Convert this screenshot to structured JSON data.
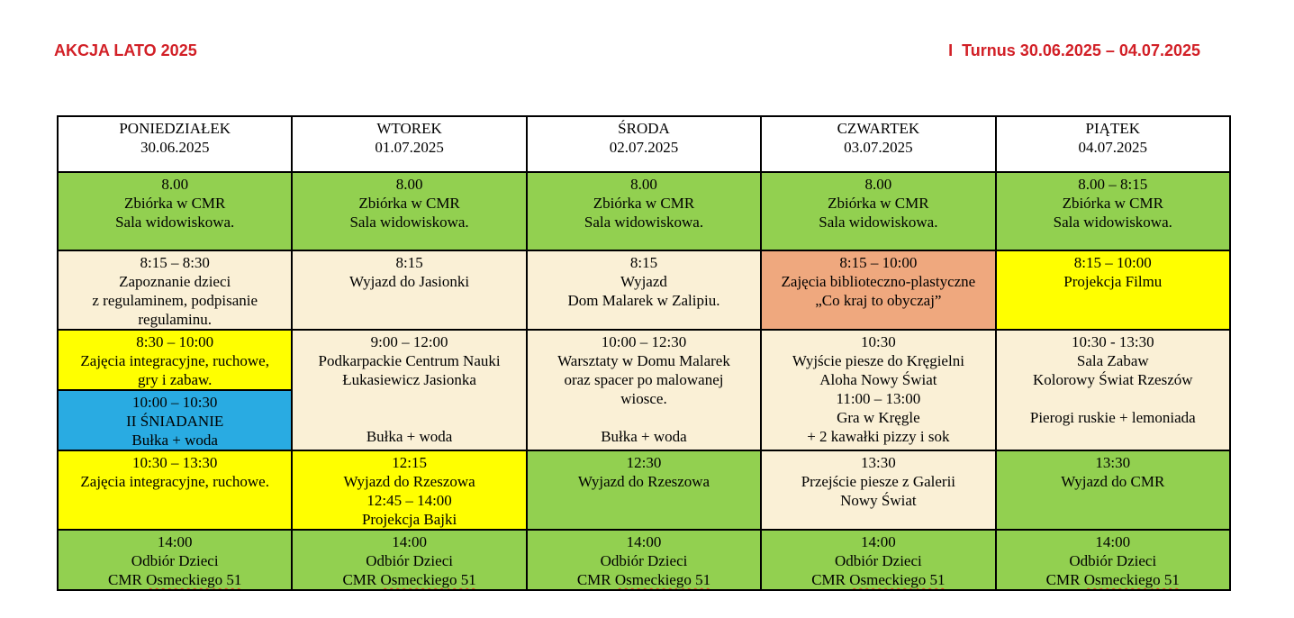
{
  "header": {
    "title_left": "AKCJA LATO 2025",
    "title_right": "I  Turnus 30.06.2025 – 04.07.2025"
  },
  "colors": {
    "title_red": "#D22027",
    "green": "#92D050",
    "yellow": "#FFFF00",
    "blue": "#29ABE2",
    "cream": "#FAF0D6",
    "orange": "#EFA87E",
    "spell_red": "#E8402A"
  },
  "table": {
    "days": [
      {
        "name": "PONIEDZIAŁEK",
        "date": "30.06.2025"
      },
      {
        "name": "WTOREK",
        "date": "01.07.2025"
      },
      {
        "name": "ŚRODA",
        "date": "02.07.2025"
      },
      {
        "name": "CZWARTEK",
        "date": "03.07.2025"
      },
      {
        "name": "PIĄTEK",
        "date": "04.07.2025"
      }
    ],
    "assembly": [
      {
        "lines": [
          "8.00",
          "Zbiórka w CMR",
          "Sala widowiskowa."
        ]
      },
      {
        "lines": [
          "8.00",
          "Zbiórka w CMR",
          "Sala widowiskowa."
        ]
      },
      {
        "lines": [
          "8.00",
          "Zbiórka w CMR",
          "Sala widowiskowa."
        ]
      },
      {
        "lines": [
          "8.00",
          "Zbiórka w CMR",
          "Sala widowiskowa."
        ]
      },
      {
        "lines": [
          "8.00 – 8:15",
          "Zbiórka w CMR",
          "Sala widowiskowa."
        ]
      }
    ],
    "morning": [
      {
        "lines": [
          "8:15 – 8:30",
          "Zapoznanie dzieci",
          "z regulaminem, podpisanie",
          "regulaminu."
        ]
      },
      {
        "lines": [
          "8:15",
          "Wyjazd do Jasionki"
        ]
      },
      {
        "lines": [
          "8:15",
          "Wyjazd",
          "Dom Malarek w Zalipiu."
        ]
      },
      {
        "lines": [
          "8:15 – 10:00",
          "Zajęcia biblioteczno-plastyczne",
          "„Co kraj to obyczaj”"
        ]
      },
      {
        "lines": [
          "8:15 – 10:00",
          "Projekcja Filmu"
        ]
      }
    ],
    "midday": {
      "mon_top": {
        "lines": [
          "8:30 – 10:00",
          "Zajęcia integracyjne, ruchowe,",
          "gry i zabaw."
        ]
      },
      "mon_snack": {
        "lines": [
          "10:00 – 10:30",
          "II ŚNIADANIE",
          "Bułka + woda"
        ]
      },
      "tue": {
        "lines": [
          "9:00 – 12:00",
          "Podkarpackie Centrum Nauki",
          "Łukasiewicz Jasionka",
          "",
          "",
          "Bułka + woda"
        ]
      },
      "wed": {
        "lines": [
          "10:00 – 12:30",
          "Warsztaty w Domu Malarek",
          "oraz spacer po malowanej",
          "wiosce.",
          "",
          "Bułka + woda"
        ]
      },
      "thu": {
        "lines": [
          "10:30",
          "Wyjście piesze do Kręgielni",
          "Aloha Nowy Świat",
          "11:00 – 13:00",
          "Gra w Kręgle",
          "+ 2 kawałki pizzy i sok"
        ]
      },
      "fri": {
        "lines": [
          "10:30 - 13:30",
          "Sala Zabaw",
          "Kolorowy Świat Rzeszów",
          "",
          "Pierogi ruskie + lemoniada"
        ]
      }
    },
    "afternoon": [
      {
        "lines": [
          "10:30 – 13:30",
          "Zajęcia integracyjne, ruchowe."
        ]
      },
      {
        "lines": [
          "12:15",
          "Wyjazd do Rzeszowa",
          "12:45 – 14:00",
          "Projekcja Bajki"
        ]
      },
      {
        "lines": [
          "12:30",
          "Wyjazd do Rzeszowa"
        ]
      },
      {
        "lines": [
          "13:30",
          "Przejście piesze z Galerii",
          "Nowy Świat"
        ]
      },
      {
        "lines": [
          "13:30",
          "Wyjazd do CMR"
        ]
      }
    ],
    "pickup": [
      {
        "time": "14:00",
        "who": "Odbiór Dzieci",
        "place_prefix": "CMR",
        "place_flagged": "Osmeckiego 51"
      },
      {
        "time": "14:00",
        "who": "Odbiór Dzieci",
        "place_prefix": "CMR",
        "place_flagged": "Osmeckiego 51"
      },
      {
        "time": "14:00",
        "who": "Odbiór Dzieci",
        "place_prefix": "CMR",
        "place_flagged": "Osmeckiego 51"
      },
      {
        "time": "14:00",
        "who": "Odbiór Dzieci",
        "place_prefix": "CMR",
        "place_flagged": "Osmeckiego 51"
      },
      {
        "time": "14:00",
        "who": "Odbiór Dzieci",
        "place_prefix": "CMR",
        "place_flagged": "Osmeckiego 51"
      }
    ]
  }
}
